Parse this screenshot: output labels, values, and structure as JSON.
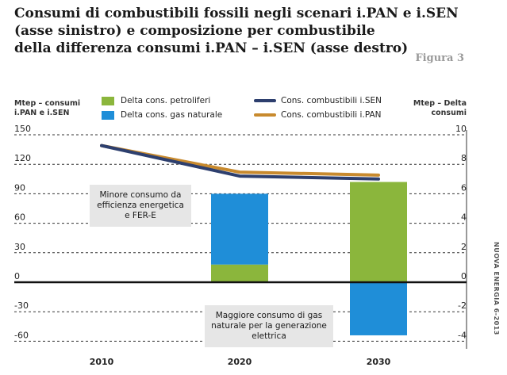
{
  "title_lines": [
    "Consumi di combustibili fossili negli scenari i.PAN e i.SEN",
    "(asse sinistro) e composizione per combustibile",
    "della differenza consumi i.PAN – i.SEN (asse destro)"
  ],
  "figure_label": "Figura 3",
  "side_credit": "NUOVA ENERGIA 6-2013",
  "colors": {
    "petroliferi": "#8bb63c",
    "gas": "#1f8ed8",
    "isen": "#2d3f6e",
    "ipan": "#c88a2e",
    "note_bg": "#e6e6e6"
  },
  "notes": {
    "minore": "Minore consumo da efficienza energetica e FER-E",
    "maggiore": "Maggiore consumo di gas naturale per la generazione elettrica"
  },
  "chart_data": {
    "type": "bar",
    "categories": [
      "2010",
      "2020",
      "2030"
    ],
    "ylabel_left": "Mtep – consumi i.PAN e i.SEN",
    "ylabel_right": "Mtep – Delta consumi",
    "ylim_left": [
      -75,
      150
    ],
    "yticks_left": [
      150,
      120,
      90,
      60,
      30,
      0,
      -30,
      -60
    ],
    "ylim_right": [
      -5,
      10
    ],
    "yticks_right": [
      10,
      8,
      6,
      4,
      2,
      0,
      -2,
      -4
    ],
    "grid": "dashed horizontal",
    "legend": [
      {
        "label": "Delta cons. petroliferi",
        "kind": "bar",
        "color_key": "petroliferi"
      },
      {
        "label": "Delta cons. gas naturale",
        "kind": "bar",
        "color_key": "gas"
      },
      {
        "label": "Cons. combustibili i.SEN",
        "kind": "line",
        "color_key": "isen"
      },
      {
        "label": "Cons. combustibili i.PAN",
        "kind": "line",
        "color_key": "ipan"
      }
    ],
    "bars": [
      {
        "name": "Delta cons. petroliferi",
        "axis": "right",
        "values": [
          null,
          1.2,
          6.8
        ]
      },
      {
        "name": "Delta cons. gas naturale",
        "axis": "right",
        "values": [
          null,
          4.8,
          -3.6
        ]
      }
    ],
    "lines": [
      {
        "name": "Cons. combustibili i.SEN",
        "axis": "left",
        "values": [
          139,
          108,
          105
        ]
      },
      {
        "name": "Cons. combustibili i.PAN",
        "axis": "left",
        "values": [
          139,
          112,
          109
        ]
      }
    ]
  }
}
